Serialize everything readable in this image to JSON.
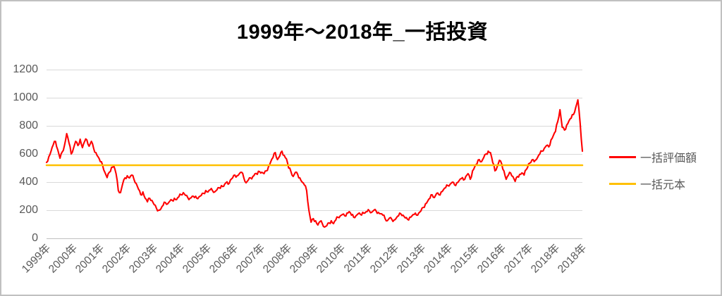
{
  "chart_data": {
    "type": "line",
    "title": "1999年～2018年_一括投資",
    "legend_position": "right",
    "grid": true,
    "x_axis": {
      "labels": [
        "1999年",
        "2000年",
        "2001年",
        "2002年",
        "2003年",
        "2004年",
        "2005年",
        "2006年",
        "2007年",
        "2008年",
        "2009年",
        "2010年",
        "2011年",
        "2012年",
        "2013年",
        "2014年",
        "2015年",
        "2016年",
        "2017年",
        "2018年",
        "2018年"
      ],
      "start_year": 1999,
      "points_per_year": 12
    },
    "y_axis": {
      "min": 0,
      "max": 1200,
      "ticks": [
        1200,
        1000,
        800,
        600,
        400,
        200,
        0
      ]
    },
    "series": [
      {
        "name": "一括評価額",
        "color": "#FF0000",
        "frequency": "monthly",
        "values": [
          540,
          580,
          620,
          665,
          690,
          630,
          570,
          615,
          660,
          745,
          680,
          600,
          640,
          690,
          660,
          705,
          645,
          690,
          700,
          655,
          690,
          640,
          610,
          580,
          545,
          520,
          470,
          432,
          470,
          505,
          515,
          460,
          340,
          325,
          390,
          430,
          445,
          430,
          450,
          420,
          390,
          350,
          310,
          330,
          285,
          260,
          285,
          270,
          240,
          215,
          200,
          210,
          235,
          255,
          245,
          265,
          270,
          285,
          275,
          295,
          310,
          325,
          305,
          290,
          285,
          300,
          290,
          285,
          295,
          305,
          320,
          340,
          330,
          345,
          340,
          330,
          345,
          360,
          375,
          370,
          395,
          385,
          415,
          430,
          450,
          445,
          460,
          470,
          430,
          395,
          415,
          430,
          440,
          460,
          455,
          475,
          470,
          460,
          480,
          510,
          545,
          575,
          610,
          560,
          585,
          620,
          590,
          565,
          500,
          475,
          440,
          470,
          455,
          430,
          400,
          380,
          340,
          200,
          115,
          140,
          125,
          95,
          120,
          105,
          80,
          90,
          110,
          125,
          105,
          130,
          150,
          160,
          170,
          160,
          180,
          190,
          165,
          150,
          160,
          175,
          170,
          185,
          180,
          190,
          195,
          185,
          200,
          195,
          185,
          175,
          165,
          140,
          125,
          145,
          135,
          130,
          145,
          160,
          175,
          165,
          145,
          135,
          150,
          160,
          170,
          165,
          180,
          195,
          220,
          245,
          265,
          285,
          310,
          290,
          320,
          310,
          330,
          345,
          360,
          375,
          385,
          400,
          380,
          395,
          410,
          425,
          415,
          440,
          460,
          420,
          480,
          510,
          530,
          560,
          545,
          575,
          600,
          620,
          610,
          540,
          480,
          510,
          555,
          530,
          480,
          420,
          450,
          465,
          440,
          405,
          440,
          455,
          465,
          450,
          490,
          530,
          540,
          560,
          555,
          575,
          600,
          620,
          640,
          660,
          650,
          700,
          730,
          760,
          830,
          915,
          790,
          770,
          805,
          835,
          855,
          880,
          930,
          985,
          820,
          620
        ]
      },
      {
        "name": "一括元本",
        "color": "#FFC000",
        "constant": 520
      }
    ],
    "colors": {
      "gridline": "#D9D9D9",
      "axis": "#BFBFBF",
      "label": "#595959",
      "title": "#000000",
      "background": "#FFFFFF",
      "border": "#C0C0C0"
    }
  }
}
